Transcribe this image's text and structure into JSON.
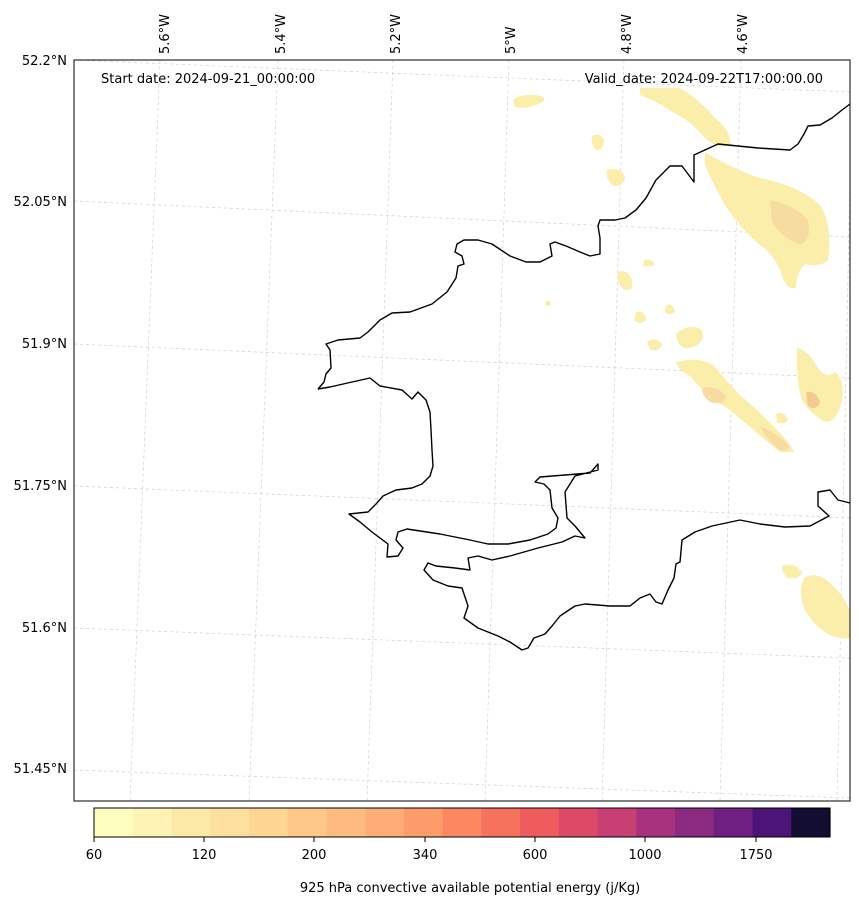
{
  "map": {
    "start_date": "Start date: 2024-09-21_00:00:00",
    "valid_date": "Valid_date: 2024-09-22T17:00:00.00",
    "lon_labels": [
      "5.6°W",
      "5.4°W",
      "5.2°W",
      "5°W",
      "4.8°W",
      "4.6°W"
    ],
    "lat_labels": [
      "52.2°N",
      "52.05°N",
      "51.9°N",
      "51.75°N",
      "51.6°N",
      "51.45°N"
    ]
  },
  "colorbar": {
    "label": "925 hPa convective available potential energy (j/Kg)",
    "tick_labels": [
      "60",
      "120",
      "200",
      "340",
      "600",
      "1000",
      "1750"
    ],
    "colors": [
      "#fcfdbf",
      "#fcf3b4",
      "#fce9a8",
      "#fde09d",
      "#fdd692",
      "#fec988",
      "#febb7f",
      "#fead77",
      "#fd9b6b",
      "#fb8761",
      "#f7725c",
      "#ee5c5e",
      "#de4968",
      "#c83f73",
      "#a8327d",
      "#8c2981",
      "#6f1f81",
      "#4b1476",
      "#120d31"
    ]
  }
}
